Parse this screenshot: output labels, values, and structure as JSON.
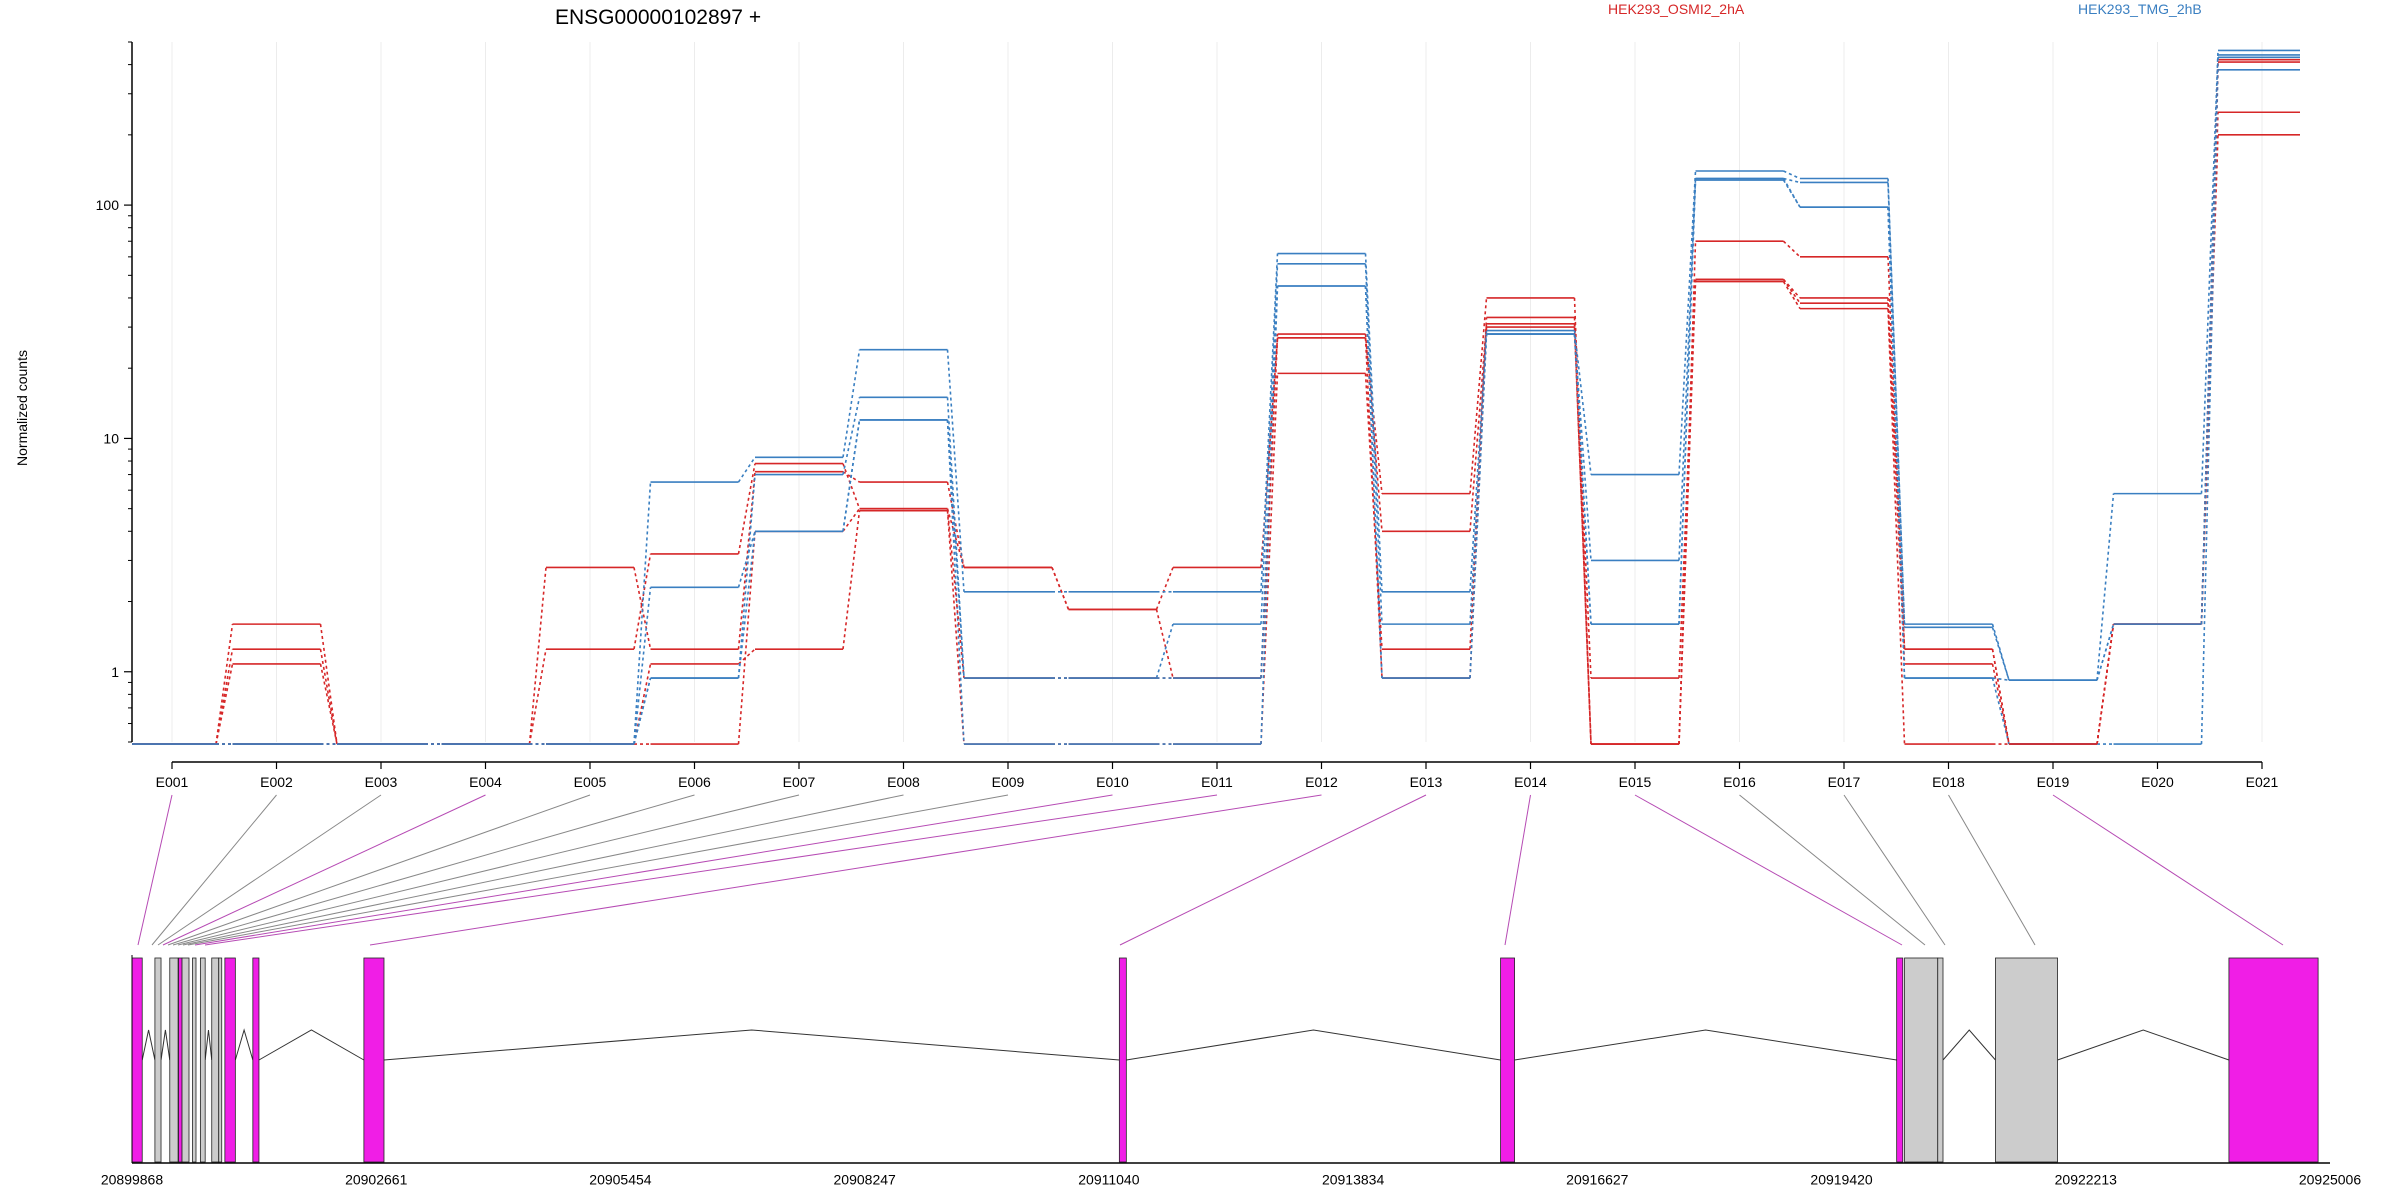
{
  "chart_data": {
    "type": "line",
    "title": "ENSG00000102897 +",
    "ylabel": "Normalized counts",
    "yscale": "log",
    "ylim": [
      0.5,
      500
    ],
    "yticks": [
      1,
      10,
      100
    ],
    "categories": [
      "E001",
      "E002",
      "E003",
      "E004",
      "E005",
      "E006",
      "E007",
      "E008",
      "E009",
      "E010",
      "E011",
      "E012",
      "E013",
      "E014",
      "E015",
      "E016",
      "E017",
      "E018",
      "E019",
      "E020",
      "E021"
    ],
    "legend": [
      {
        "name": "HEK293_OSMI2_2hA",
        "color": "#d62728"
      },
      {
        "name": "HEK293_TMG_2hB",
        "color": "#3a7fc1"
      }
    ],
    "series": [
      {
        "group": "HEK293_OSMI2_2hA",
        "color": "#d62728",
        "values": [
          0.49,
          1.25,
          0.49,
          0.49,
          2.8,
          1.25,
          7.2,
          6.5,
          2.8,
          1.85,
          2.8,
          27,
          5.8,
          40,
          0.49,
          70,
          60,
          1.25,
          0.49,
          1.6,
          250
        ]
      },
      {
        "group": "HEK293_OSMI2_2hA",
        "color": "#d62728",
        "values": [
          0.49,
          1.6,
          0.49,
          0.49,
          1.25,
          3.2,
          7.8,
          5.0,
          2.8,
          1.85,
          0.94,
          28,
          4.0,
          31,
          0.49,
          48,
          40,
          1.08,
          0.49,
          1.6,
          420
        ]
      },
      {
        "group": "HEK293_OSMI2_2hA",
        "color": "#d62728",
        "values": [
          0.49,
          1.08,
          0.49,
          0.49,
          0.49,
          1.08,
          1.25,
          4.9,
          0.49,
          0.49,
          0.49,
          19,
          1.25,
          33,
          0.94,
          47,
          36,
          0.49,
          0.49,
          1.6,
          200
        ]
      },
      {
        "group": "HEK293_TMG_2hB",
        "color": "#3a7fc1",
        "values": [
          0.49,
          0.49,
          0.49,
          0.49,
          0.49,
          6.5,
          8.3,
          24,
          2.2,
          2.2,
          2.2,
          62,
          2.2,
          29,
          7.0,
          140,
          130,
          1.6,
          0.92,
          5.8,
          460
        ]
      },
      {
        "group": "HEK293_TMG_2hB",
        "color": "#3a7fc1",
        "values": [
          0.49,
          0.49,
          0.49,
          0.49,
          0.49,
          0.94,
          7.0,
          15,
          0.94,
          0.94,
          1.6,
          56,
          1.6,
          28,
          3.0,
          130,
          125,
          1.55,
          0.92,
          1.6,
          430
        ]
      },
      {
        "group": "HEK293_TMG_2hB",
        "color": "#3a7fc1",
        "values": [
          0.49,
          0.49,
          0.49,
          0.49,
          0.49,
          2.3,
          4.0,
          12,
          0.49,
          0.49,
          0.49,
          45,
          0.94,
          28,
          1.6,
          128,
          98,
          0.94,
          0.49,
          0.49,
          380
        ]
      },
      {
        "group": "HEK293_OSMI2_2hA",
        "color": "#d62728",
        "values": [
          0.49,
          0.49,
          0.49,
          0.49,
          0.49,
          0.49,
          4.0,
          5.0,
          0.94,
          0.94,
          0.94,
          27,
          0.94,
          30,
          0.49,
          48,
          38,
          1.25,
          0.49,
          1.6,
          410
        ]
      },
      {
        "group": "HEK293_TMG_2hB",
        "color": "#3a7fc1",
        "values": [
          0.49,
          0.49,
          0.49,
          0.49,
          0.49,
          0.94,
          4.0,
          12,
          0.94,
          0.94,
          0.94,
          45,
          0.94,
          28,
          1.6,
          130,
          98,
          0.94,
          0.92,
          1.6,
          440
        ]
      }
    ],
    "gene_model": {
      "coords": [
        "20899868",
        "20902661",
        "20905454",
        "20908247",
        "20911040",
        "20913834",
        "20916627",
        "20919420",
        "20922213",
        "20925006"
      ],
      "exon_colors": {
        "highlighted": "#f01ee6",
        "normal": "#cccccc"
      },
      "exons": [
        {
          "id": "E001",
          "start": 20899868,
          "end": 20899985,
          "highlighted": true
        },
        {
          "id": "E002",
          "start": 20900130,
          "end": 20900200,
          "highlighted": false
        },
        {
          "id": "E003",
          "start": 20900300,
          "end": 20900395,
          "highlighted": false
        },
        {
          "id": "E004",
          "start": 20900400,
          "end": 20900440,
          "highlighted": true
        },
        {
          "id": "E005",
          "start": 20900440,
          "end": 20900520,
          "highlighted": false
        },
        {
          "id": "E006",
          "start": 20900560,
          "end": 20900600,
          "highlighted": false
        },
        {
          "id": "E007",
          "start": 20900650,
          "end": 20900705,
          "highlighted": false
        },
        {
          "id": "E008",
          "start": 20900780,
          "end": 20900860,
          "highlighted": false
        },
        {
          "id": "E009",
          "start": 20900860,
          "end": 20900880,
          "highlighted": false
        },
        {
          "id": "E010",
          "start": 20900930,
          "end": 20901050,
          "highlighted": true
        },
        {
          "id": "E011",
          "start": 20901250,
          "end": 20901320,
          "highlighted": true
        },
        {
          "id": "E012",
          "start": 20902520,
          "end": 20902750,
          "highlighted": true
        },
        {
          "id": "E013",
          "start": 20911160,
          "end": 20911240,
          "highlighted": true
        },
        {
          "id": "E014",
          "start": 20915520,
          "end": 20915680,
          "highlighted": true
        },
        {
          "id": "E015",
          "start": 20920050,
          "end": 20920120,
          "highlighted": true
        },
        {
          "id": "E016",
          "start": 20920140,
          "end": 20920520,
          "highlighted": false
        },
        {
          "id": "E017",
          "start": 20920520,
          "end": 20920580,
          "highlighted": false
        },
        {
          "id": "E018",
          "start": 20921180,
          "end": 20921890,
          "highlighted": false
        },
        {
          "id": "E019",
          "start": 20923850,
          "end": 20924870,
          "highlighted": true
        }
      ]
    }
  }
}
